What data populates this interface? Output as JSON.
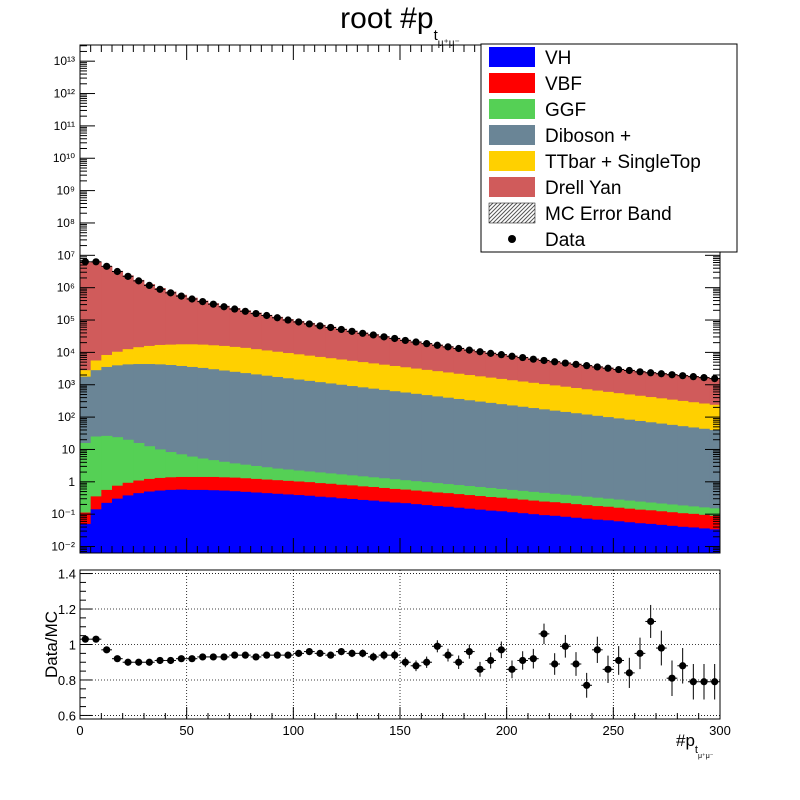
{
  "title": {
    "main": "root  #p",
    "subscript": "t",
    "subsubscript": "μ⁺μ⁻"
  },
  "legend": {
    "entries": [
      {
        "key": "vh",
        "label": "VH",
        "color": "#0000ff",
        "style": "fill"
      },
      {
        "key": "vbf",
        "label": "VBF",
        "color": "#ff0000",
        "style": "fill"
      },
      {
        "key": "ggf",
        "label": "GGF",
        "color": "#55d055",
        "style": "fill"
      },
      {
        "key": "diboson",
        "label": "Diboson +",
        "color": "#6a8596",
        "style": "fill"
      },
      {
        "key": "ttbar",
        "label": "TTbar + SingleTop",
        "color": "#ffd000",
        "style": "fill"
      },
      {
        "key": "dy",
        "label": "Drell Yan",
        "color": "#d05b5b",
        "style": "fill"
      },
      {
        "key": "mcerr",
        "label": "MC Error Band",
        "color": "#888888",
        "style": "hatch"
      },
      {
        "key": "data",
        "label": "Data",
        "color": "#000000",
        "style": "marker"
      }
    ]
  },
  "chart_data": [
    {
      "type": "area",
      "subtype": "stacked-histogram",
      "y_scale": "log",
      "xlim": [
        0,
        300
      ],
      "ylim_log10": [
        -2.2,
        13.5
      ],
      "y_ticks": [
        "10⁻²",
        "10⁻¹",
        "1",
        "10",
        "10²",
        "10³",
        "10⁴",
        "10⁵",
        "10⁶",
        "10⁷",
        "10⁸",
        "10⁹",
        "10¹⁰",
        "10¹¹",
        "10¹²",
        "10¹³"
      ],
      "bin_width": 5,
      "x": [
        2.5,
        7.5,
        12.5,
        17.5,
        22.5,
        27.5,
        32.5,
        37.5,
        42.5,
        47.5,
        52.5,
        57.5,
        62.5,
        67.5,
        72.5,
        77.5,
        82.5,
        87.5,
        92.5,
        97.5,
        102.5,
        107.5,
        112.5,
        117.5,
        122.5,
        127.5,
        132.5,
        137.5,
        142.5,
        147.5,
        152.5,
        157.5,
        162.5,
        167.5,
        172.5,
        177.5,
        182.5,
        187.5,
        192.5,
        197.5,
        202.5,
        207.5,
        212.5,
        217.5,
        222.5,
        227.5,
        232.5,
        237.5,
        242.5,
        247.5,
        252.5,
        257.5,
        262.5,
        267.5,
        272.5,
        277.5,
        282.5,
        287.5,
        292.5,
        297.5
      ],
      "series": [
        {
          "key": "vh",
          "name": "VH",
          "log10_cumulative": [
            -1.3,
            -0.85,
            -0.65,
            -0.52,
            -0.42,
            -0.35,
            -0.3,
            -0.27,
            -0.25,
            -0.24,
            -0.25,
            -0.25,
            -0.26,
            -0.27,
            -0.29,
            -0.31,
            -0.33,
            -0.35,
            -0.37,
            -0.39,
            -0.41,
            -0.43,
            -0.46,
            -0.48,
            -0.51,
            -0.53,
            -0.56,
            -0.58,
            -0.61,
            -0.64,
            -0.66,
            -0.69,
            -0.72,
            -0.75,
            -0.77,
            -0.8,
            -0.83,
            -0.86,
            -0.89,
            -0.91,
            -0.94,
            -0.97,
            -1.0,
            -1.03,
            -1.05,
            -1.08,
            -1.11,
            -1.14,
            -1.17,
            -1.19,
            -1.22,
            -1.25,
            -1.28,
            -1.3,
            -1.33,
            -1.36,
            -1.39,
            -1.41,
            -1.44,
            -1.47
          ]
        },
        {
          "key": "vbf",
          "name": "VBF",
          "log10_cumulative": [
            -0.95,
            -0.45,
            -0.25,
            -0.12,
            -0.03,
            0.04,
            0.09,
            0.12,
            0.14,
            0.15,
            0.15,
            0.15,
            0.15,
            0.14,
            0.13,
            0.11,
            0.09,
            0.07,
            0.05,
            0.03,
            0.01,
            -0.01,
            -0.04,
            -0.06,
            -0.09,
            -0.11,
            -0.14,
            -0.16,
            -0.19,
            -0.22,
            -0.24,
            -0.27,
            -0.3,
            -0.33,
            -0.35,
            -0.38,
            -0.41,
            -0.44,
            -0.47,
            -0.49,
            -0.52,
            -0.55,
            -0.58,
            -0.61,
            -0.63,
            -0.66,
            -0.69,
            -0.72,
            -0.75,
            -0.77,
            -0.8,
            -0.83,
            -0.86,
            -0.88,
            -0.91,
            -0.94,
            -0.97,
            -0.99,
            -1.02,
            -1.05
          ]
        },
        {
          "key": "ggf",
          "name": "GGF",
          "log10_cumulative": [
            1.2,
            1.4,
            1.42,
            1.38,
            1.3,
            1.2,
            1.1,
            1.0,
            0.92,
            0.85,
            0.78,
            0.72,
            0.67,
            0.62,
            0.57,
            0.53,
            0.49,
            0.45,
            0.41,
            0.38,
            0.35,
            0.32,
            0.29,
            0.26,
            0.23,
            0.2,
            0.17,
            0.14,
            0.11,
            0.08,
            0.05,
            0.02,
            -0.01,
            -0.04,
            -0.07,
            -0.1,
            -0.13,
            -0.16,
            -0.19,
            -0.22,
            -0.25,
            -0.28,
            -0.31,
            -0.34,
            -0.37,
            -0.4,
            -0.43,
            -0.46,
            -0.49,
            -0.52,
            -0.55,
            -0.58,
            -0.61,
            -0.64,
            -0.67,
            -0.7,
            -0.73,
            -0.76,
            -0.79,
            -0.82
          ]
        },
        {
          "key": "diboson",
          "name": "Diboson +",
          "log10_cumulative": [
            3.25,
            3.45,
            3.55,
            3.6,
            3.63,
            3.64,
            3.64,
            3.63,
            3.61,
            3.58,
            3.55,
            3.52,
            3.48,
            3.44,
            3.4,
            3.36,
            3.32,
            3.28,
            3.24,
            3.2,
            3.16,
            3.12,
            3.08,
            3.04,
            3.0,
            2.96,
            2.92,
            2.88,
            2.84,
            2.8,
            2.76,
            2.72,
            2.68,
            2.64,
            2.6,
            2.56,
            2.52,
            2.48,
            2.44,
            2.4,
            2.36,
            2.32,
            2.28,
            2.24,
            2.2,
            2.16,
            2.12,
            2.08,
            2.04,
            2.0,
            1.96,
            1.92,
            1.88,
            1.84,
            1.8,
            1.76,
            1.72,
            1.68,
            1.64,
            1.6
          ]
        },
        {
          "key": "ttbar",
          "name": "TTbar + SingleTop",
          "log10_cumulative": [
            3.45,
            3.75,
            3.92,
            4.02,
            4.1,
            4.16,
            4.2,
            4.23,
            4.24,
            4.25,
            4.25,
            4.24,
            4.22,
            4.2,
            4.17,
            4.14,
            4.1,
            4.06,
            4.02,
            3.98,
            3.94,
            3.9,
            3.86,
            3.82,
            3.78,
            3.74,
            3.7,
            3.66,
            3.62,
            3.58,
            3.54,
            3.5,
            3.46,
            3.42,
            3.38,
            3.34,
            3.3,
            3.26,
            3.22,
            3.18,
            3.14,
            3.1,
            3.06,
            3.02,
            2.98,
            2.94,
            2.9,
            2.86,
            2.82,
            2.78,
            2.74,
            2.7,
            2.66,
            2.62,
            2.58,
            2.54,
            2.5,
            2.46,
            2.42,
            2.38
          ]
        },
        {
          "key": "dy",
          "name": "Drell Yan",
          "log10_cumulative": [
            6.78,
            6.8,
            6.67,
            6.52,
            6.38,
            6.24,
            6.11,
            5.99,
            5.88,
            5.78,
            5.69,
            5.6,
            5.52,
            5.44,
            5.37,
            5.3,
            5.23,
            5.16,
            5.1,
            5.03,
            4.97,
            4.91,
            4.85,
            4.79,
            4.73,
            4.67,
            4.61,
            4.56,
            4.5,
            4.45,
            4.39,
            4.34,
            4.29,
            4.24,
            4.19,
            4.14,
            4.09,
            4.04,
            3.99,
            3.95,
            3.9,
            3.86,
            3.81,
            3.77,
            3.73,
            3.69,
            3.65,
            3.61,
            3.57,
            3.53,
            3.49,
            3.46,
            3.42,
            3.39,
            3.36,
            3.33,
            3.3,
            3.27,
            3.24,
            3.21
          ]
        }
      ],
      "data_log10": [
        6.8,
        6.8,
        6.66,
        6.5,
        6.35,
        6.21,
        6.07,
        5.95,
        5.84,
        5.74,
        5.65,
        5.57,
        5.49,
        5.41,
        5.34,
        5.27,
        5.2,
        5.14,
        5.07,
        5.0,
        4.94,
        4.88,
        4.82,
        4.77,
        4.71,
        4.65,
        4.59,
        4.54,
        4.48,
        4.43,
        4.37,
        4.32,
        4.27,
        4.22,
        4.17,
        4.12,
        4.07,
        4.02,
        3.97,
        3.93,
        3.88,
        3.84,
        3.79,
        3.75,
        3.71,
        3.67,
        3.63,
        3.59,
        3.55,
        3.51,
        3.47,
        3.44,
        3.4,
        3.37,
        3.34,
        3.31,
        3.28,
        3.25,
        3.22,
        3.19
      ]
    },
    {
      "type": "scatter",
      "subtype": "ratio",
      "ylabel": "Data/MC",
      "xlabel": "#p",
      "xlabel_subscript": "t",
      "xlabel_subsubscript": "μ⁺μ⁻",
      "xlim": [
        0,
        300
      ],
      "ylim": [
        0.58,
        1.42
      ],
      "x_ticks": [
        0,
        50,
        100,
        150,
        200,
        250,
        300
      ],
      "y_ticks": [
        0.6,
        0.8,
        1,
        1.2,
        1.4
      ],
      "grid": true,
      "x": [
        2.5,
        7.5,
        12.5,
        17.5,
        22.5,
        27.5,
        32.5,
        37.5,
        42.5,
        47.5,
        52.5,
        57.5,
        62.5,
        67.5,
        72.5,
        77.5,
        82.5,
        87.5,
        92.5,
        97.5,
        102.5,
        107.5,
        112.5,
        117.5,
        122.5,
        127.5,
        132.5,
        137.5,
        142.5,
        147.5,
        152.5,
        157.5,
        162.5,
        167.5,
        172.5,
        177.5,
        182.5,
        187.5,
        192.5,
        197.5,
        202.5,
        207.5,
        212.5,
        217.5,
        222.5,
        227.5,
        232.5,
        237.5,
        242.5,
        247.5,
        252.5,
        257.5,
        262.5,
        267.5,
        272.5,
        277.5,
        282.5,
        287.5,
        292.5,
        297.5
      ],
      "values": [
        1.03,
        1.03,
        0.97,
        0.92,
        0.9,
        0.9,
        0.9,
        0.91,
        0.91,
        0.92,
        0.92,
        0.93,
        0.93,
        0.93,
        0.94,
        0.94,
        0.93,
        0.94,
        0.94,
        0.94,
        0.95,
        0.96,
        0.95,
        0.94,
        0.96,
        0.95,
        0.95,
        0.93,
        0.94,
        0.94,
        0.9,
        0.88,
        0.9,
        0.99,
        0.94,
        0.9,
        0.96,
        0.86,
        0.91,
        0.97,
        0.86,
        0.91,
        0.92,
        1.06,
        0.89,
        0.99,
        0.89,
        0.77,
        0.97,
        0.86,
        0.91,
        0.84,
        0.95,
        1.13,
        0.98,
        0.81,
        0.88,
        0.79,
        0.79,
        0.79
      ],
      "errors": [
        0.008,
        0.008,
        0.008,
        0.008,
        0.008,
        0.008,
        0.008,
        0.008,
        0.009,
        0.009,
        0.009,
        0.01,
        0.01,
        0.011,
        0.011,
        0.012,
        0.013,
        0.013,
        0.014,
        0.015,
        0.016,
        0.017,
        0.018,
        0.019,
        0.02,
        0.021,
        0.022,
        0.024,
        0.025,
        0.027,
        0.028,
        0.03,
        0.032,
        0.034,
        0.036,
        0.038,
        0.04,
        0.042,
        0.045,
        0.047,
        0.05,
        0.052,
        0.055,
        0.058,
        0.061,
        0.064,
        0.067,
        0.07,
        0.074,
        0.077,
        0.081,
        0.085,
        0.089,
        0.093,
        0.098,
        0.1,
        0.1,
        0.1,
        0.1,
        0.1
      ]
    }
  ]
}
